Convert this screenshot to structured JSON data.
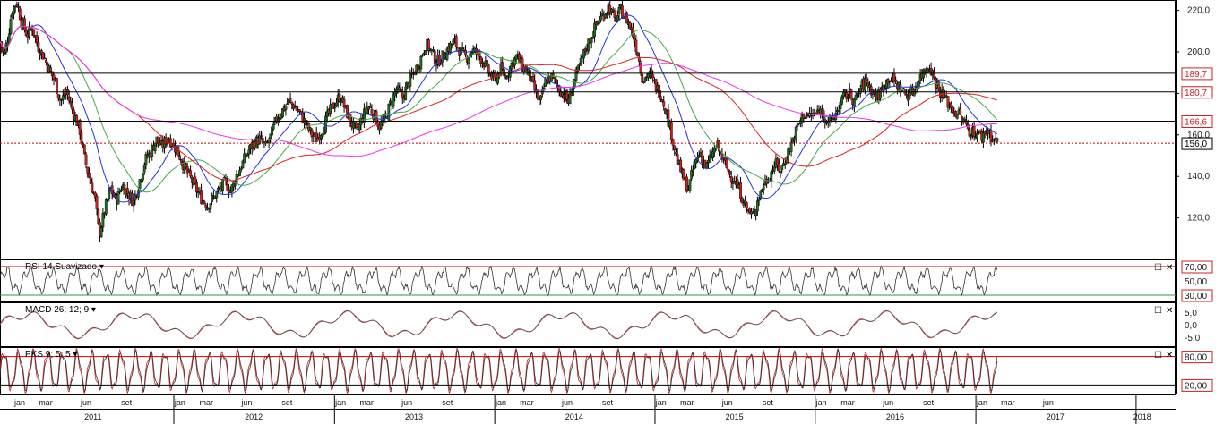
{
  "chart_data": [
    {
      "type": "candlestick",
      "pane": "price",
      "y_range": [
        100,
        225
      ],
      "y_ticks": [
        "220,0",
        "200,0",
        "180,0",
        "160,0",
        "140,0",
        "120,0"
      ],
      "x_range": [
        "2010-12",
        "2018-04"
      ],
      "moving_average_colors": [
        "#2233dd",
        "#44aa44",
        "#dd2222",
        "#ee33ee"
      ],
      "candle_colors": {
        "up": "#1f6b1f",
        "down": "#cc2020",
        "wick": "#000000"
      },
      "series": [
        {
          "name": "close",
          "values": [
            [
              "2010-12-01",
              205
            ],
            [
              "2010-12-10",
              198
            ],
            [
              "2010-12-20",
              208
            ],
            [
              "2010-12-28",
              220
            ],
            [
              "2011-01-08",
              224
            ],
            [
              "2011-01-20",
              214
            ],
            [
              "2011-02-01",
              208
            ],
            [
              "2011-02-12",
              212
            ],
            [
              "2011-02-25",
              203
            ],
            [
              "2011-03-10",
              198
            ],
            [
              "2011-03-22",
              192
            ],
            [
              "2011-04-05",
              186
            ],
            [
              "2011-04-18",
              176
            ],
            [
              "2011-05-01",
              181
            ],
            [
              "2011-05-15",
              172
            ],
            [
              "2011-06-01",
              162
            ],
            [
              "2011-06-12",
              148
            ],
            [
              "2011-06-24",
              138
            ],
            [
              "2011-07-05",
              130
            ],
            [
              "2011-07-15",
              112
            ],
            [
              "2011-07-28",
              124
            ],
            [
              "2011-08-10",
              134
            ],
            [
              "2011-08-22",
              128
            ],
            [
              "2011-09-05",
              136
            ],
            [
              "2011-09-18",
              132
            ],
            [
              "2011-10-01",
              128
            ],
            [
              "2011-10-15",
              138
            ],
            [
              "2011-10-28",
              148
            ],
            [
              "2011-11-10",
              152
            ],
            [
              "2011-11-22",
              158
            ],
            [
              "2011-12-05",
              154
            ],
            [
              "2011-12-18",
              159
            ],
            [
              "2012-01-01",
              155
            ],
            [
              "2012-01-14",
              150
            ],
            [
              "2012-01-26",
              144
            ],
            [
              "2012-02-08",
              139
            ],
            [
              "2012-02-20",
              134
            ],
            [
              "2012-03-05",
              129
            ],
            [
              "2012-03-18",
              126
            ],
            [
              "2012-04-01",
              130
            ],
            [
              "2012-04-14",
              134
            ],
            [
              "2012-04-27",
              137
            ],
            [
              "2012-05-10",
              133
            ],
            [
              "2012-05-22",
              140
            ],
            [
              "2012-06-05",
              146
            ],
            [
              "2012-06-18",
              152
            ],
            [
              "2012-07-01",
              156
            ],
            [
              "2012-07-15",
              158
            ],
            [
              "2012-07-28",
              154
            ],
            [
              "2012-08-10",
              160
            ],
            [
              "2012-08-22",
              168
            ],
            [
              "2012-09-05",
              172
            ],
            [
              "2012-09-18",
              176
            ],
            [
              "2012-10-01",
              174
            ],
            [
              "2012-10-15",
              170
            ],
            [
              "2012-10-28",
              165
            ],
            [
              "2012-11-10",
              160
            ],
            [
              "2012-11-22",
              158
            ],
            [
              "2012-12-05",
              163
            ],
            [
              "2012-12-18",
              170
            ],
            [
              "2013-01-01",
              175
            ],
            [
              "2013-01-14",
              179
            ],
            [
              "2013-01-26",
              172
            ],
            [
              "2013-02-08",
              166
            ],
            [
              "2013-02-20",
              161
            ],
            [
              "2013-03-05",
              168
            ],
            [
              "2013-03-18",
              174
            ],
            [
              "2013-04-01",
              170
            ],
            [
              "2013-04-14",
              164
            ],
            [
              "2013-04-27",
              168
            ],
            [
              "2013-05-10",
              176
            ],
            [
              "2013-05-22",
              182
            ],
            [
              "2013-06-05",
              178
            ],
            [
              "2013-06-18",
              185
            ],
            [
              "2013-07-01",
              190
            ],
            [
              "2013-07-15",
              196
            ],
            [
              "2013-07-28",
              204
            ],
            [
              "2013-08-10",
              200
            ],
            [
              "2013-08-22",
              195
            ],
            [
              "2013-09-05",
              198
            ],
            [
              "2013-09-18",
              202
            ],
            [
              "2013-10-01",
              205
            ],
            [
              "2013-10-15",
              200
            ],
            [
              "2013-10-28",
              197
            ],
            [
              "2013-11-10",
              201
            ],
            [
              "2013-11-22",
              199
            ],
            [
              "2013-12-05",
              196
            ],
            [
              "2013-12-18",
              190
            ],
            [
              "2014-01-01",
              186
            ],
            [
              "2014-01-14",
              192
            ],
            [
              "2014-01-26",
              188
            ],
            [
              "2014-02-08",
              194
            ],
            [
              "2014-02-20",
              198
            ],
            [
              "2014-03-05",
              193
            ],
            [
              "2014-03-18",
              190
            ],
            [
              "2014-04-01",
              182
            ],
            [
              "2014-04-14",
              175
            ],
            [
              "2014-04-27",
              186
            ],
            [
              "2014-05-10",
              188
            ],
            [
              "2014-05-22",
              184
            ],
            [
              "2014-06-05",
              180
            ],
            [
              "2014-06-18",
              176
            ],
            [
              "2014-07-01",
              186
            ],
            [
              "2014-07-15",
              194
            ],
            [
              "2014-07-28",
              202
            ],
            [
              "2014-08-10",
              208
            ],
            [
              "2014-08-22",
              214
            ],
            [
              "2014-09-05",
              218
            ],
            [
              "2014-09-18",
              222
            ],
            [
              "2014-10-01",
              215
            ],
            [
              "2014-10-15",
              220
            ],
            [
              "2014-10-28",
              216
            ],
            [
              "2014-11-10",
              210
            ],
            [
              "2014-11-22",
              200
            ],
            [
              "2014-12-05",
              186
            ],
            [
              "2014-12-18",
              190
            ],
            [
              "2015-01-01",
              184
            ],
            [
              "2015-01-14",
              180
            ],
            [
              "2015-01-26",
              172
            ],
            [
              "2015-02-08",
              160
            ],
            [
              "2015-02-20",
              148
            ],
            [
              "2015-03-05",
              140
            ],
            [
              "2015-03-18",
              134
            ],
            [
              "2015-04-01",
              146
            ],
            [
              "2015-04-14",
              152
            ],
            [
              "2015-04-27",
              144
            ],
            [
              "2015-05-10",
              150
            ],
            [
              "2015-05-22",
              155
            ],
            [
              "2015-06-05",
              148
            ],
            [
              "2015-06-18",
              142
            ],
            [
              "2015-07-01",
              138
            ],
            [
              "2015-07-15",
              132
            ],
            [
              "2015-07-28",
              125
            ],
            [
              "2015-08-10",
              120
            ],
            [
              "2015-08-22",
              128
            ],
            [
              "2015-09-05",
              136
            ],
            [
              "2015-09-18",
              140
            ],
            [
              "2015-10-01",
              146
            ],
            [
              "2015-10-15",
              143
            ],
            [
              "2015-10-28",
              150
            ],
            [
              "2015-11-10",
              157
            ],
            [
              "2015-11-22",
              164
            ],
            [
              "2015-12-05",
              170
            ],
            [
              "2015-12-18",
              169
            ],
            [
              "2016-01-01",
              170
            ],
            [
              "2016-01-14",
              172
            ],
            [
              "2016-01-26",
              168
            ],
            [
              "2016-02-08",
              166
            ],
            [
              "2016-02-20",
              172
            ],
            [
              "2016-03-05",
              178
            ],
            [
              "2016-03-18",
              180
            ],
            [
              "2016-04-01",
              176
            ],
            [
              "2016-04-14",
              183
            ],
            [
              "2016-04-27",
              186
            ],
            [
              "2016-05-10",
              181
            ],
            [
              "2016-05-22",
              178
            ],
            [
              "2016-06-05",
              184
            ],
            [
              "2016-06-18",
              188
            ],
            [
              "2016-07-01",
              185
            ],
            [
              "2016-07-15",
              182
            ],
            [
              "2016-07-28",
              179
            ],
            [
              "2016-08-10",
              181
            ],
            [
              "2016-08-22",
              186
            ],
            [
              "2016-09-05",
              191
            ],
            [
              "2016-09-18",
              194
            ],
            [
              "2016-10-01",
              185
            ],
            [
              "2016-10-15",
              180
            ],
            [
              "2016-10-28",
              176
            ],
            [
              "2016-11-10",
              172
            ],
            [
              "2016-11-22",
              170
            ],
            [
              "2016-12-05",
              166
            ],
            [
              "2016-12-18",
              162
            ],
            [
              "2017-01-01",
              161
            ],
            [
              "2017-01-14",
              159
            ],
            [
              "2017-01-26",
              163
            ],
            [
              "2017-02-08",
              158
            ],
            [
              "2017-02-20",
              156
            ]
          ]
        }
      ],
      "reference_lines": [
        {
          "label": "189,7",
          "value": 189.7,
          "style": "solid"
        },
        {
          "label": "180,7",
          "value": 180.7,
          "style": "solid"
        },
        {
          "label": "166,6",
          "value": 166.6,
          "style": "solid"
        },
        {
          "label": "156,0",
          "value": 156.0,
          "style": "dotted"
        }
      ]
    },
    {
      "type": "line",
      "pane": "rsi",
      "title": "RSI 14 Suavizado",
      "y_range": [
        20,
        80
      ],
      "y_ticks": [
        "50,00"
      ],
      "levels": [
        {
          "label": "70,00",
          "value": 70
        },
        {
          "label": "30,00",
          "value": 30
        }
      ]
    },
    {
      "type": "line",
      "pane": "macd",
      "title": "MACD 26; 12; 9",
      "y_range": [
        -9,
        9
      ],
      "y_ticks": [
        "5,0",
        "0,0",
        "-5,0"
      ]
    },
    {
      "type": "line",
      "pane": "pks",
      "title": "PKS 9; 5; 5",
      "y_range": [
        0,
        100
      ],
      "levels": [
        {
          "label": "80,00",
          "value": 80
        },
        {
          "label": "20,00",
          "value": 20
        }
      ]
    }
  ],
  "time_axis": {
    "months": [
      {
        "label": "jan",
        "date": "2011-01-15"
      },
      {
        "label": "mar",
        "date": "2011-03-15"
      },
      {
        "label": "jun",
        "date": "2011-06-15"
      },
      {
        "label": "set",
        "date": "2011-09-15"
      },
      {
        "label": "jan",
        "date": "2012-01-15"
      },
      {
        "label": "mar",
        "date": "2012-03-15"
      },
      {
        "label": "jun",
        "date": "2012-06-15"
      },
      {
        "label": "set",
        "date": "2012-09-15"
      },
      {
        "label": "jan",
        "date": "2013-01-15"
      },
      {
        "label": "mar",
        "date": "2013-03-15"
      },
      {
        "label": "jun",
        "date": "2013-06-15"
      },
      {
        "label": "set",
        "date": "2013-09-15"
      },
      {
        "label": "jan",
        "date": "2014-01-15"
      },
      {
        "label": "mar",
        "date": "2014-03-15"
      },
      {
        "label": "jun",
        "date": "2014-06-15"
      },
      {
        "label": "set",
        "date": "2014-09-15"
      },
      {
        "label": "jan",
        "date": "2015-01-15"
      },
      {
        "label": "mar",
        "date": "2015-03-15"
      },
      {
        "label": "jun",
        "date": "2015-06-15"
      },
      {
        "label": "set",
        "date": "2015-09-15"
      },
      {
        "label": "jan",
        "date": "2016-01-15"
      },
      {
        "label": "mar",
        "date": "2016-03-15"
      },
      {
        "label": "jun",
        "date": "2016-06-15"
      },
      {
        "label": "set",
        "date": "2016-09-15"
      },
      {
        "label": "jan",
        "date": "2017-01-15"
      },
      {
        "label": "mar",
        "date": "2017-03-15"
      },
      {
        "label": "jun",
        "date": "2017-06-15"
      }
    ],
    "years": [
      {
        "label": "2011",
        "date": "2011-07-01"
      },
      {
        "label": "2012",
        "date": "2012-07-01"
      },
      {
        "label": "2013",
        "date": "2013-07-01"
      },
      {
        "label": "2014",
        "date": "2014-07-01"
      },
      {
        "label": "2015",
        "date": "2015-07-01"
      },
      {
        "label": "2016",
        "date": "2016-07-01"
      },
      {
        "label": "2017",
        "date": "2017-07-01"
      },
      {
        "label": "2018",
        "date": "2018-01-15"
      }
    ],
    "year_separators": [
      "2012-01-01",
      "2013-01-01",
      "2014-01-01",
      "2015-01-01",
      "2016-01-01",
      "2017-01-01",
      "2018-01-01"
    ]
  },
  "controls": {
    "maximize_glyph": "☐",
    "close_glyph": "✕"
  },
  "colors": {
    "indicator_line": "#333333",
    "macd_signal": "#cc3333",
    "level_line_red": "#cc0000",
    "level_line_green": "#339933",
    "axis_badge_border": "#cc2222"
  }
}
